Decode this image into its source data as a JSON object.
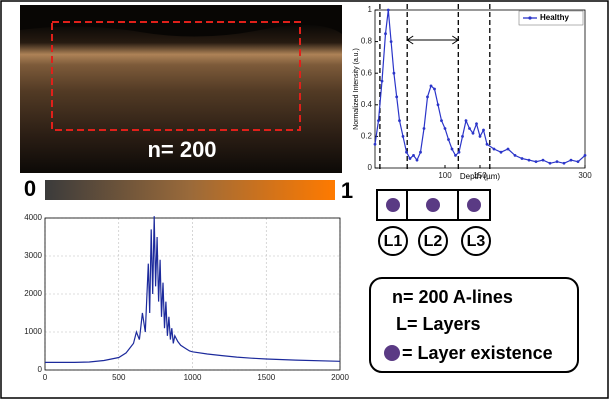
{
  "figure": {
    "image_label": "n= 200",
    "colorbar_min": "0",
    "colorbar_max": "1",
    "layers": [
      "L1",
      "L2",
      "L3"
    ],
    "key": {
      "line1": "n= 200 A-lines",
      "line2": "L= Layers",
      "line3": "= Layer existence"
    }
  },
  "chart_data": [
    {
      "type": "line",
      "x_label": "Depth (µm)",
      "y_label": "Normalized Intensity (a.u.)",
      "x": [
        0,
        5,
        10,
        15,
        19,
        23,
        27,
        31,
        35,
        40,
        45,
        50,
        55,
        60,
        65,
        70,
        75,
        80,
        85,
        90,
        95,
        100,
        105,
        110,
        115,
        120,
        125,
        130,
        135,
        140,
        145,
        150,
        155,
        160,
        170,
        180,
        190,
        200,
        210,
        220,
        230,
        240,
        250,
        260,
        270,
        280,
        290,
        300
      ],
      "series": [
        {
          "name": "Healthy",
          "color": "#2b35c9",
          "values": [
            0.15,
            0.3,
            0.55,
            0.85,
            1.0,
            0.8,
            0.6,
            0.45,
            0.3,
            0.2,
            0.1,
            0.06,
            0.08,
            0.05,
            0.1,
            0.25,
            0.45,
            0.52,
            0.5,
            0.4,
            0.3,
            0.25,
            0.18,
            0.12,
            0.08,
            0.1,
            0.2,
            0.3,
            0.25,
            0.22,
            0.28,
            0.2,
            0.24,
            0.15,
            0.12,
            0.1,
            0.12,
            0.08,
            0.06,
            0.05,
            0.04,
            0.05,
            0.03,
            0.04,
            0.03,
            0.05,
            0.04,
            0.08
          ]
        }
      ],
      "xlim": [
        0,
        300
      ],
      "xticks": [
        100,
        150,
        300
      ],
      "ylim": [
        0,
        1
      ],
      "yticks": [
        0,
        0.2,
        0.4,
        0.6,
        0.8,
        1
      ],
      "grid": false,
      "legend": "top-right",
      "boundaries": [
        7,
        46,
        119,
        164
      ],
      "arrow": [
        46,
        119
      ]
    },
    {
      "type": "line",
      "x": [
        0,
        100,
        200,
        300,
        400,
        500,
        550,
        600,
        620,
        640,
        660,
        680,
        700,
        710,
        720,
        730,
        740,
        750,
        760,
        770,
        780,
        790,
        800,
        810,
        820,
        830,
        840,
        850,
        860,
        870,
        880,
        900,
        920,
        940,
        960,
        980,
        1000,
        1100,
        1200,
        1300,
        1400,
        1500,
        1700,
        2000
      ],
      "series": [
        {
          "color": "#1c2a9c",
          "values": [
            200,
            200,
            200,
            210,
            250,
            330,
            450,
            700,
            1000,
            800,
            1500,
            1000,
            2800,
            1500,
            3700,
            2000,
            4050,
            2200,
            3500,
            1800,
            2900,
            1400,
            2300,
            1100,
            1800,
            900,
            1400,
            800,
            1100,
            700,
            900,
            750,
            650,
            600,
            550,
            500,
            480,
            420,
            380,
            340,
            310,
            290,
            260,
            230
          ]
        }
      ],
      "xlim": [
        0,
        2000
      ],
      "xticks": [
        0,
        500,
        1000,
        1500,
        2000
      ],
      "ylim": [
        0,
        4000
      ],
      "yticks": [
        0,
        1000,
        2000,
        3000,
        4000
      ],
      "grid": true
    }
  ]
}
